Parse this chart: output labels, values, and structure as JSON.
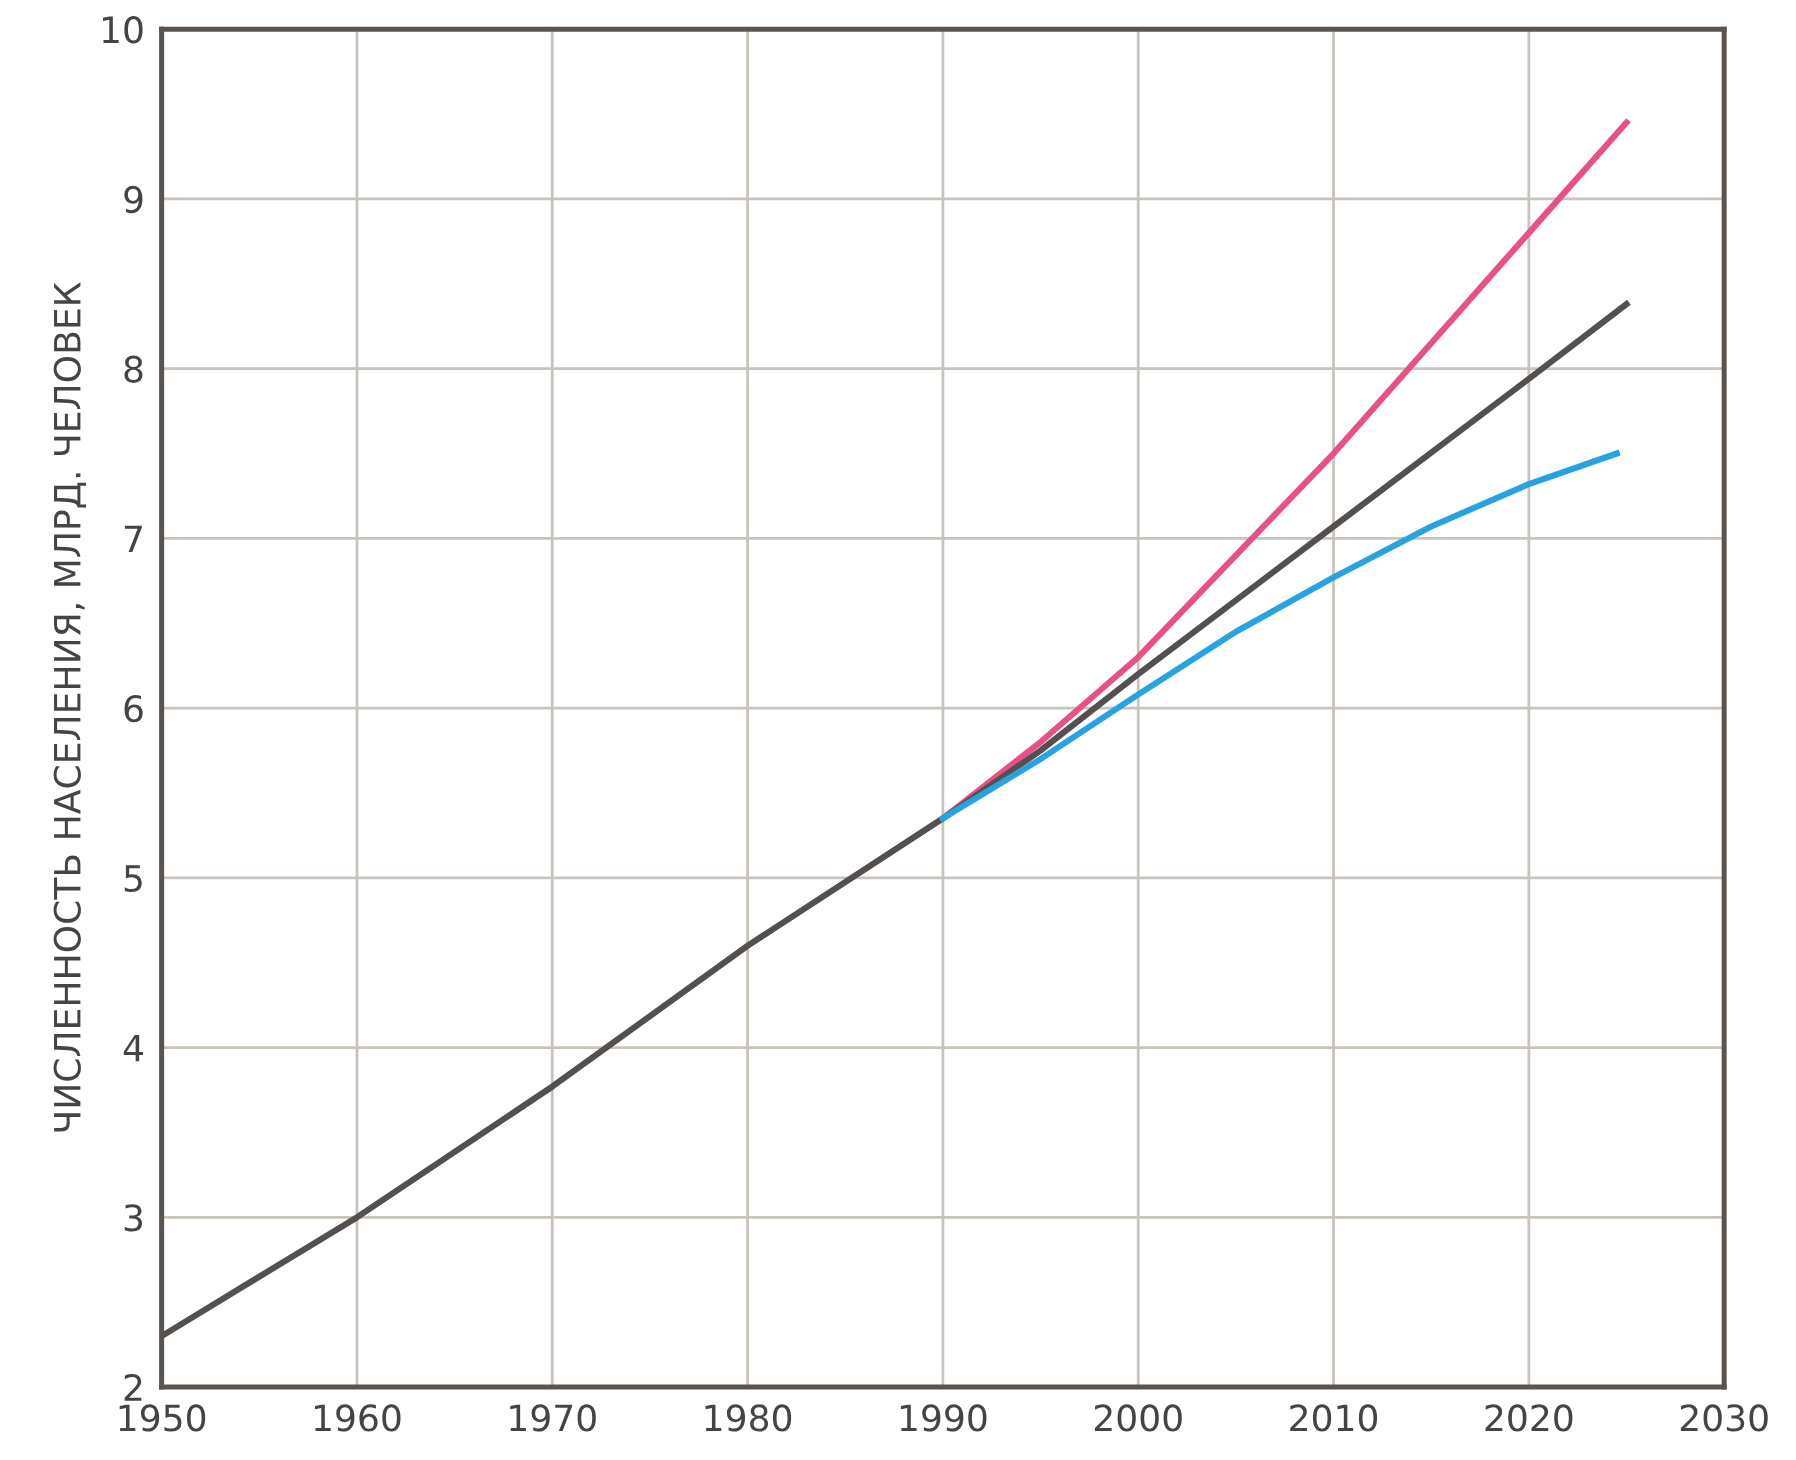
{
  "chart_data": {
    "type": "line",
    "ylabel": "ЧИСЛЕННОСТЬ НАСЕЛЕНИЯ, МЛРД. ЧЕЛОВЕК",
    "xlim": [
      1950,
      2030
    ],
    "xticks": [
      1950,
      1960,
      1970,
      1980,
      1990,
      2000,
      2010,
      2020,
      2030
    ],
    "ylim": [
      2,
      10
    ],
    "yticks": [
      2,
      3,
      4,
      5,
      6,
      7,
      8,
      9,
      10
    ],
    "grid": true,
    "line_style": "solid",
    "series": [
      {
        "color": "#e8508a",
        "x": [
          1990,
          1995,
          2000,
          2005,
          2010,
          2015,
          2020,
          2025
        ],
        "values": [
          5.35,
          5.8,
          6.3,
          6.9,
          7.5,
          8.15,
          8.8,
          9.45
        ]
      },
      {
        "color": "#555050",
        "x": [
          1950,
          1960,
          1970,
          1980,
          1990,
          1995,
          2000,
          2010,
          2020,
          2025
        ],
        "values": [
          2.3,
          3.0,
          3.77,
          4.6,
          5.35,
          5.75,
          6.2,
          7.07,
          7.94,
          8.38
        ]
      },
      {
        "color": "#29a3e0",
        "x": [
          1990,
          1995,
          2000,
          2005,
          2010,
          2015,
          2020,
          2024.5
        ],
        "values": [
          5.35,
          5.7,
          6.08,
          6.45,
          6.77,
          7.07,
          7.32,
          7.5
        ]
      }
    ]
  }
}
